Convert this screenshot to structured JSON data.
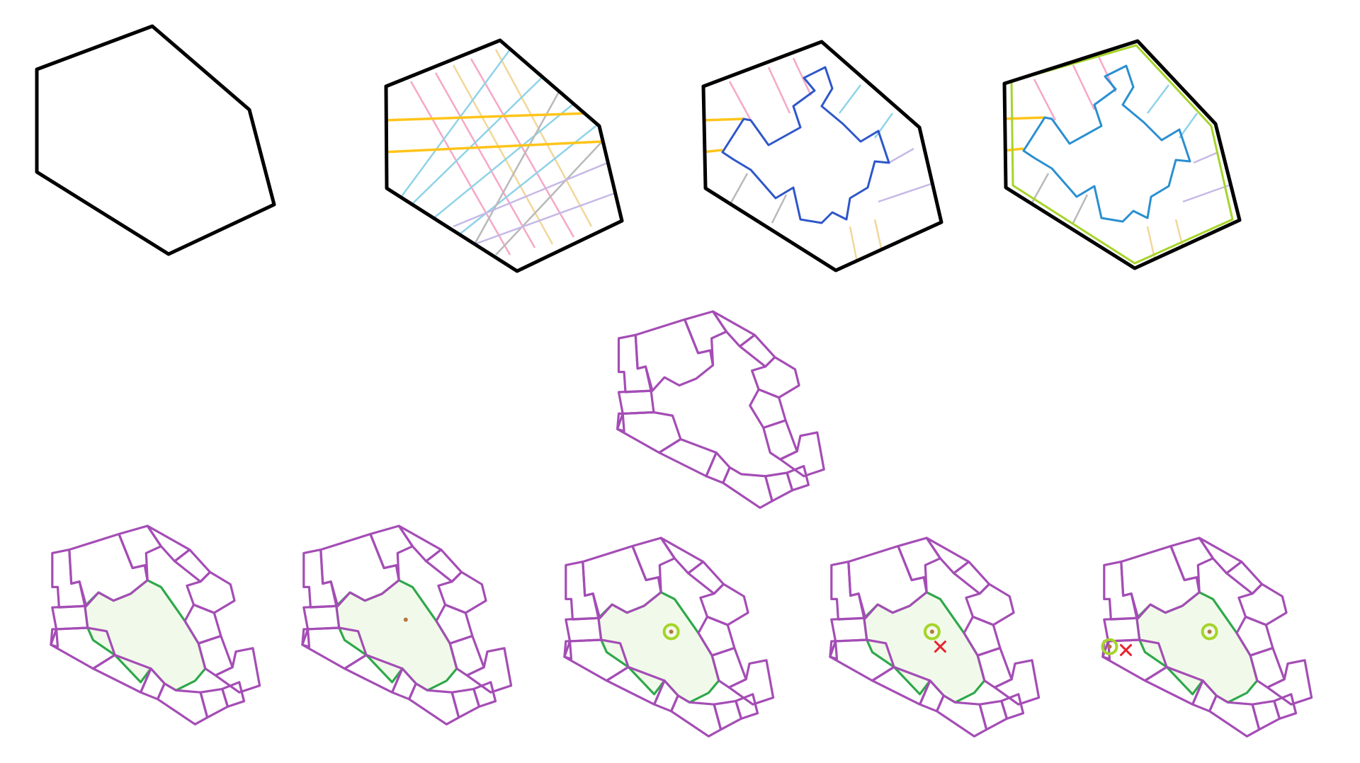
{
  "diagram": {
    "steps": [
      {
        "id": "step-1",
        "kind": "outline"
      },
      {
        "id": "step-2",
        "kind": "grid-lines"
      },
      {
        "id": "step-3",
        "kind": "carved-voids"
      },
      {
        "id": "step-4",
        "kind": "offset-boundary"
      },
      {
        "id": "step-5",
        "kind": "purple-blocks"
      },
      {
        "id": "step-6",
        "kind": "courtyard"
      },
      {
        "id": "step-7",
        "kind": "courtyard-center-dot"
      },
      {
        "id": "step-8",
        "kind": "courtyard-center-circle"
      },
      {
        "id": "step-9",
        "kind": "courtyard-circle-cross"
      },
      {
        "id": "step-10",
        "kind": "courtyard-two-circles-cross"
      }
    ],
    "colors": {
      "outline": "#000000",
      "pink": "#f6a7c7",
      "yellow": "#f2d79a",
      "orange": "#ffc41a",
      "cyan": "#8fd3e8",
      "gray": "#b9b9b9",
      "lavender": "#c6b9e6",
      "blue": "#2f57c9",
      "lime": "#a6d42a",
      "purple": "#a44db5",
      "green": "#2fa84b",
      "courtyard": "#f1faea",
      "brown": "#b7773f",
      "red": "#e8232e"
    }
  }
}
